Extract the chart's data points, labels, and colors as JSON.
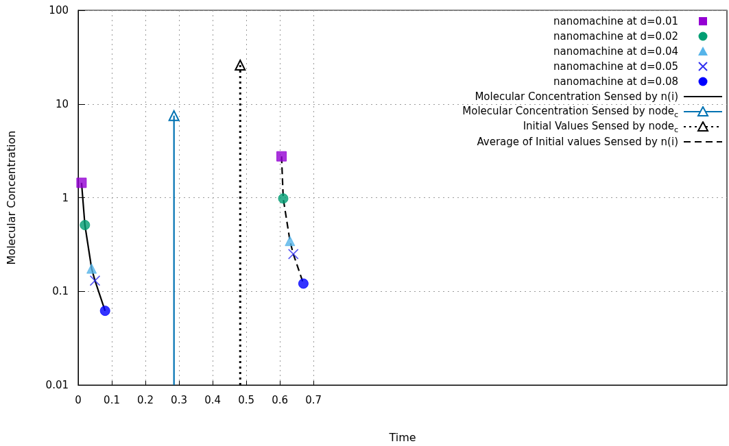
{
  "chart_data": {
    "type": "scatter",
    "xlabel": "Time",
    "ylabel": "Molecular Concentration",
    "log": "y",
    "grid": true,
    "legend": "top right",
    "xlim": [
      0,
      1.93
    ],
    "xticks": [
      0,
      0.1,
      0.2,
      0.3,
      0.4,
      0.5,
      0.6,
      0.7
    ],
    "ylim": [
      0.01,
      100
    ],
    "yticks": [
      0.01,
      0.1,
      1,
      10,
      100
    ],
    "series": [
      {
        "name": "nanomachine at d=0.01",
        "marker": "square",
        "color": "#9400d3",
        "x": [
          0.01,
          0.605
        ],
        "values": [
          1.44,
          2.76
        ]
      },
      {
        "name": "nanomachine at d=0.02",
        "marker": "circle",
        "color": "#009e73",
        "x": [
          0.02,
          0.61
        ],
        "values": [
          0.51,
          0.98
        ]
      },
      {
        "name": "nanomachine at d=0.04",
        "marker": "triangle",
        "color": "#56b4e9",
        "x": [
          0.04,
          0.63
        ],
        "values": [
          0.175,
          0.345
        ]
      },
      {
        "name": "nanomachine at d=0.05",
        "marker": "cross",
        "color": "#3030f0",
        "x": [
          0.05,
          0.64
        ],
        "values": [
          0.13,
          0.25
        ]
      },
      {
        "name": "nanomachine at d=0.08",
        "marker": "circle",
        "color": "#0000ff",
        "x": [
          0.08,
          0.67
        ],
        "values": [
          0.062,
          0.121
        ]
      },
      {
        "name": "Molecular Concentration Sensed by n(i)",
        "type": "line",
        "marker": "none",
        "line_style": "solid",
        "color": "#000000",
        "x": [
          0.01,
          0.02,
          0.04,
          0.05,
          0.08
        ],
        "values": [
          1.44,
          0.51,
          0.175,
          0.13,
          0.062
        ]
      },
      {
        "name": "Molecular Concentration Sensed by node$_{c}$",
        "type": "line",
        "marker": "triangle",
        "line_style": "solid",
        "color": "#0072b2",
        "x": [
          0.285,
          0.285
        ],
        "values": [
          0.01,
          7.5
        ]
      },
      {
        "name": "Initial Values Sensed by node$_{c}$",
        "type": "line",
        "marker": "triangle",
        "line_style": "dotted",
        "color": "#000000",
        "x": [
          0.482,
          0.482
        ],
        "values": [
          0.01,
          26
        ]
      },
      {
        "name": "Average of Initial values Sensed by n(i)",
        "type": "line",
        "marker": "none",
        "line_style": "dashed",
        "color": "#000000",
        "x": [
          0.605,
          0.61,
          0.63,
          0.64,
          0.67
        ],
        "values": [
          2.76,
          0.98,
          0.345,
          0.25,
          0.121
        ]
      }
    ]
  }
}
